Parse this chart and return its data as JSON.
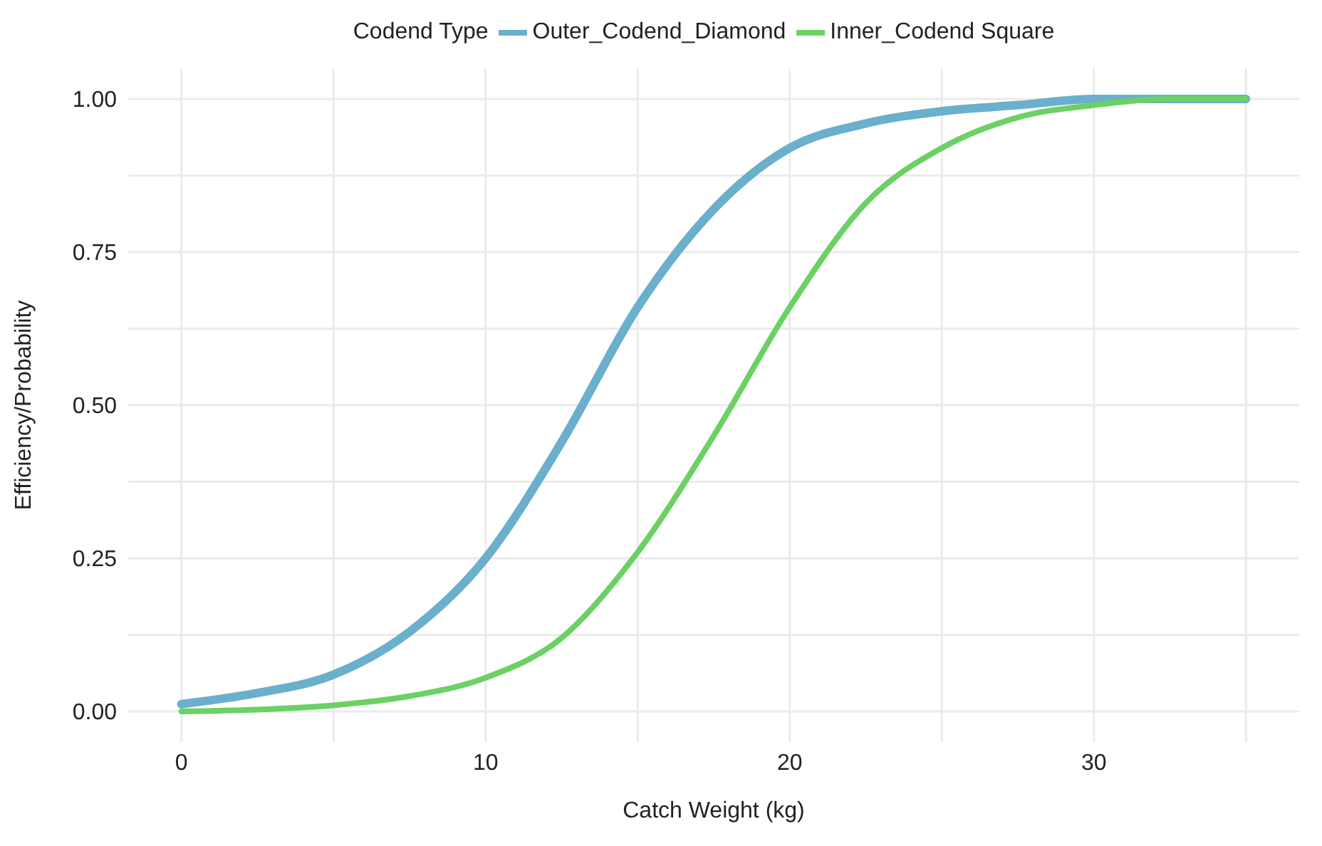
{
  "chart_data": {
    "type": "line",
    "xlabel": "Catch Weight (kg)",
    "ylabel": "Efficiency/Probability",
    "legend_title": "Codend Type",
    "legend": "top",
    "grid": true,
    "marker": "none",
    "line_style": "solid",
    "x": [
      0,
      2.5,
      5,
      7.5,
      10,
      12.5,
      15,
      17.5,
      20,
      22.5,
      25,
      27.5,
      30,
      32.5,
      35
    ],
    "series": [
      {
        "name": "Outer_Codend_Diamond",
        "color": "#6aafcc",
        "values": [
          0.012,
          0.03,
          0.06,
          0.13,
          0.25,
          0.44,
          0.66,
          0.82,
          0.92,
          0.96,
          0.98,
          0.99,
          1.0,
          1.0,
          1.0
        ]
      },
      {
        "name": "Inner_Codend Square",
        "color": "#6bd164",
        "values": [
          0.0,
          0.003,
          0.01,
          0.025,
          0.055,
          0.12,
          0.26,
          0.45,
          0.66,
          0.83,
          0.92,
          0.97,
          0.99,
          1.0,
          1.0
        ]
      }
    ],
    "xlim": [
      -1.75,
      36.75
    ],
    "xticks": [
      0,
      {
        "value": 5,
        "label": null
      },
      10,
      {
        "value": 15,
        "label": null
      },
      20,
      {
        "value": 25,
        "label": null
      },
      30,
      {
        "value": 35,
        "label": null
      }
    ],
    "ylim": [
      -0.05,
      1.05
    ],
    "yticks": [
      "0.00",
      {
        "value": 0.125,
        "label": null
      },
      {
        "value": 0.25,
        "label": "0.25"
      },
      {
        "value": 0.375,
        "label": null
      },
      {
        "value": 0.5,
        "label": "0.50"
      },
      {
        "value": 0.625,
        "label": null
      },
      {
        "value": 0.75,
        "label": "0.75"
      },
      {
        "value": 0.875,
        "label": null
      },
      {
        "value": 1,
        "label": "1.00"
      }
    ]
  }
}
